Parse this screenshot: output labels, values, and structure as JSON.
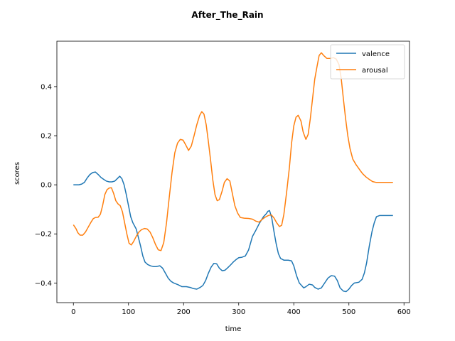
{
  "chart_data": {
    "type": "line",
    "title": "After_The_Rain",
    "xlabel": "time",
    "ylabel": "scores",
    "xlim": [
      -30,
      610
    ],
    "ylim": [
      -0.48,
      0.585
    ],
    "xticks": [
      0,
      100,
      200,
      300,
      400,
      500,
      600
    ],
    "yticks": [
      -0.4,
      -0.2,
      0.0,
      0.2,
      0.4
    ],
    "ytick_labels": [
      "−0.4",
      "−0.2",
      "0.0",
      "0.2",
      "0.4"
    ],
    "grid": false,
    "legend_position": "top-right",
    "series": [
      {
        "name": "valence",
        "color": "#1f77b4",
        "points": [
          [
            0,
            0.0
          ],
          [
            10,
            0.0
          ],
          [
            15,
            0.003
          ],
          [
            20,
            0.01
          ],
          [
            25,
            0.028
          ],
          [
            30,
            0.042
          ],
          [
            35,
            0.05
          ],
          [
            40,
            0.052
          ],
          [
            45,
            0.042
          ],
          [
            50,
            0.03
          ],
          [
            55,
            0.022
          ],
          [
            60,
            0.015
          ],
          [
            65,
            0.012
          ],
          [
            70,
            0.012
          ],
          [
            75,
            0.015
          ],
          [
            80,
            0.026
          ],
          [
            84,
            0.035
          ],
          [
            88,
            0.025
          ],
          [
            92,
            0.0
          ],
          [
            96,
            -0.04
          ],
          [
            100,
            -0.085
          ],
          [
            104,
            -0.13
          ],
          [
            108,
            -0.155
          ],
          [
            114,
            -0.18
          ],
          [
            118,
            -0.215
          ],
          [
            122,
            -0.25
          ],
          [
            126,
            -0.29
          ],
          [
            130,
            -0.315
          ],
          [
            135,
            -0.325
          ],
          [
            140,
            -0.33
          ],
          [
            145,
            -0.333
          ],
          [
            150,
            -0.333
          ],
          [
            157,
            -0.33
          ],
          [
            162,
            -0.34
          ],
          [
            167,
            -0.36
          ],
          [
            172,
            -0.38
          ],
          [
            177,
            -0.393
          ],
          [
            182,
            -0.4
          ],
          [
            190,
            -0.407
          ],
          [
            197,
            -0.415
          ],
          [
            205,
            -0.415
          ],
          [
            212,
            -0.418
          ],
          [
            218,
            -0.423
          ],
          [
            224,
            -0.425
          ],
          [
            230,
            -0.418
          ],
          [
            235,
            -0.41
          ],
          [
            240,
            -0.39
          ],
          [
            245,
            -0.36
          ],
          [
            250,
            -0.335
          ],
          [
            255,
            -0.32
          ],
          [
            260,
            -0.322
          ],
          [
            265,
            -0.34
          ],
          [
            270,
            -0.35
          ],
          [
            275,
            -0.348
          ],
          [
            280,
            -0.338
          ],
          [
            285,
            -0.327
          ],
          [
            290,
            -0.315
          ],
          [
            295,
            -0.305
          ],
          [
            300,
            -0.297
          ],
          [
            306,
            -0.295
          ],
          [
            312,
            -0.29
          ],
          [
            318,
            -0.265
          ],
          [
            325,
            -0.21
          ],
          [
            330,
            -0.19
          ],
          [
            338,
            -0.155
          ],
          [
            345,
            -0.13
          ],
          [
            350,
            -0.118
          ],
          [
            353,
            -0.108
          ],
          [
            356,
            -0.105
          ],
          [
            360,
            -0.135
          ],
          [
            364,
            -0.19
          ],
          [
            368,
            -0.24
          ],
          [
            372,
            -0.28
          ],
          [
            376,
            -0.3
          ],
          [
            382,
            -0.307
          ],
          [
            390,
            -0.307
          ],
          [
            396,
            -0.31
          ],
          [
            400,
            -0.33
          ],
          [
            405,
            -0.37
          ],
          [
            410,
            -0.4
          ],
          [
            414,
            -0.41
          ],
          [
            418,
            -0.42
          ],
          [
            422,
            -0.415
          ],
          [
            428,
            -0.405
          ],
          [
            434,
            -0.408
          ],
          [
            438,
            -0.418
          ],
          [
            444,
            -0.425
          ],
          [
            450,
            -0.42
          ],
          [
            456,
            -0.4
          ],
          [
            462,
            -0.38
          ],
          [
            468,
            -0.37
          ],
          [
            474,
            -0.372
          ],
          [
            479,
            -0.39
          ],
          [
            484,
            -0.42
          ],
          [
            490,
            -0.433
          ],
          [
            495,
            -0.435
          ],
          [
            500,
            -0.425
          ],
          [
            505,
            -0.41
          ],
          [
            510,
            -0.4
          ],
          [
            518,
            -0.397
          ],
          [
            524,
            -0.385
          ],
          [
            528,
            -0.36
          ],
          [
            532,
            -0.32
          ],
          [
            537,
            -0.25
          ],
          [
            542,
            -0.19
          ],
          [
            546,
            -0.155
          ],
          [
            550,
            -0.13
          ],
          [
            556,
            -0.125
          ],
          [
            565,
            -0.125
          ],
          [
            580,
            -0.125
          ]
        ]
      },
      {
        "name": "arousal",
        "color": "#ff7f0e",
        "points": [
          [
            0,
            -0.163
          ],
          [
            5,
            -0.18
          ],
          [
            8,
            -0.195
          ],
          [
            12,
            -0.205
          ],
          [
            17,
            -0.205
          ],
          [
            22,
            -0.192
          ],
          [
            27,
            -0.172
          ],
          [
            32,
            -0.152
          ],
          [
            36,
            -0.138
          ],
          [
            40,
            -0.133
          ],
          [
            45,
            -0.132
          ],
          [
            49,
            -0.12
          ],
          [
            53,
            -0.085
          ],
          [
            57,
            -0.04
          ],
          [
            61,
            -0.02
          ],
          [
            65,
            -0.013
          ],
          [
            69,
            -0.012
          ],
          [
            73,
            -0.035
          ],
          [
            77,
            -0.065
          ],
          [
            81,
            -0.078
          ],
          [
            85,
            -0.085
          ],
          [
            89,
            -0.11
          ],
          [
            93,
            -0.155
          ],
          [
            97,
            -0.2
          ],
          [
            101,
            -0.238
          ],
          [
            105,
            -0.245
          ],
          [
            109,
            -0.232
          ],
          [
            114,
            -0.21
          ],
          [
            119,
            -0.192
          ],
          [
            124,
            -0.182
          ],
          [
            129,
            -0.178
          ],
          [
            134,
            -0.18
          ],
          [
            139,
            -0.192
          ],
          [
            144,
            -0.215
          ],
          [
            149,
            -0.243
          ],
          [
            154,
            -0.265
          ],
          [
            159,
            -0.268
          ],
          [
            164,
            -0.235
          ],
          [
            169,
            -0.155
          ],
          [
            174,
            -0.05
          ],
          [
            179,
            0.05
          ],
          [
            184,
            0.13
          ],
          [
            189,
            0.17
          ],
          [
            194,
            0.185
          ],
          [
            199,
            0.182
          ],
          [
            204,
            0.162
          ],
          [
            209,
            0.14
          ],
          [
            214,
            0.158
          ],
          [
            219,
            0.2
          ],
          [
            224,
            0.245
          ],
          [
            229,
            0.282
          ],
          [
            233,
            0.298
          ],
          [
            237,
            0.288
          ],
          [
            241,
            0.245
          ],
          [
            245,
            0.175
          ],
          [
            249,
            0.1
          ],
          [
            253,
            0.02
          ],
          [
            257,
            -0.04
          ],
          [
            261,
            -0.065
          ],
          [
            265,
            -0.06
          ],
          [
            270,
            -0.025
          ],
          [
            274,
            0.01
          ],
          [
            279,
            0.025
          ],
          [
            284,
            0.015
          ],
          [
            288,
            -0.03
          ],
          [
            293,
            -0.085
          ],
          [
            298,
            -0.115
          ],
          [
            303,
            -0.133
          ],
          [
            310,
            -0.136
          ],
          [
            318,
            -0.137
          ],
          [
            325,
            -0.14
          ],
          [
            331,
            -0.148
          ],
          [
            337,
            -0.152
          ],
          [
            342,
            -0.142
          ],
          [
            348,
            -0.132
          ],
          [
            354,
            -0.125
          ],
          [
            359,
            -0.122
          ],
          [
            364,
            -0.135
          ],
          [
            369,
            -0.155
          ],
          [
            374,
            -0.17
          ],
          [
            378,
            -0.165
          ],
          [
            382,
            -0.12
          ],
          [
            387,
            -0.03
          ],
          [
            392,
            0.07
          ],
          [
            396,
            0.17
          ],
          [
            400,
            0.24
          ],
          [
            404,
            0.275
          ],
          [
            408,
            0.283
          ],
          [
            413,
            0.26
          ],
          [
            417,
            0.215
          ],
          [
            422,
            0.185
          ],
          [
            426,
            0.205
          ],
          [
            430,
            0.27
          ],
          [
            434,
            0.35
          ],
          [
            438,
            0.43
          ],
          [
            442,
            0.48
          ],
          [
            446,
            0.527
          ],
          [
            450,
            0.538
          ],
          [
            455,
            0.525
          ],
          [
            460,
            0.515
          ],
          [
            466,
            0.515
          ],
          [
            472,
            0.518
          ],
          [
            477,
            0.512
          ],
          [
            482,
            0.49
          ],
          [
            486,
            0.435
          ],
          [
            490,
            0.35
          ],
          [
            494,
            0.27
          ],
          [
            498,
            0.2
          ],
          [
            502,
            0.148
          ],
          [
            507,
            0.105
          ],
          [
            513,
            0.082
          ],
          [
            519,
            0.063
          ],
          [
            525,
            0.045
          ],
          [
            531,
            0.032
          ],
          [
            537,
            0.022
          ],
          [
            543,
            0.013
          ],
          [
            549,
            0.01
          ],
          [
            560,
            0.01
          ],
          [
            580,
            0.01
          ]
        ]
      }
    ]
  }
}
